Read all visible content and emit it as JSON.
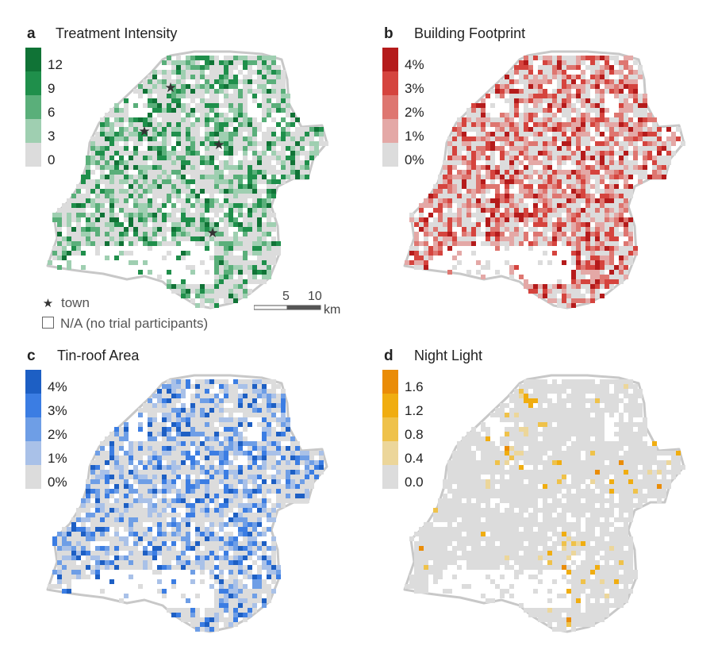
{
  "panels": [
    {
      "letter": "a",
      "title": "Treatment Intensity",
      "palette": [
        "#dcdcdc",
        "#9fcfb1",
        "#5aaf7a",
        "#1f8f4b",
        "#107336"
      ],
      "ticks": [
        "0",
        "3",
        "6",
        "9",
        "12"
      ],
      "density": 0.52,
      "seed": 11
    },
    {
      "letter": "b",
      "title": "Building Footprint",
      "palette": [
        "#dcdcdc",
        "#e4a8a6",
        "#de7670",
        "#d5443e",
        "#b51b1b"
      ],
      "ticks": [
        "0%",
        "1%",
        "2%",
        "3%",
        "4%"
      ],
      "density": 0.62,
      "seed": 23
    },
    {
      "letter": "c",
      "title": "Tin-roof Area",
      "palette": [
        "#dcdcdc",
        "#a9c1e8",
        "#6e9ee6",
        "#3b7de3",
        "#1d5fc4"
      ],
      "ticks": [
        "0%",
        "1%",
        "2%",
        "3%",
        "4%"
      ],
      "density": 0.5,
      "seed": 37
    },
    {
      "letter": "d",
      "title": "Night Light",
      "palette": [
        "#dcdcdc",
        "#ecd69a",
        "#efc24a",
        "#f0ad10",
        "#ea8c07"
      ],
      "ticks": [
        "0.0",
        "0.4",
        "0.8",
        "1.2",
        "1.6"
      ],
      "density": 0.12,
      "seed": 53
    }
  ],
  "key": {
    "town_label": "town",
    "na_label": "N/A (no trial participants)"
  },
  "scale": {
    "labels": [
      "5",
      "10"
    ],
    "unit": "km"
  },
  "towns": [
    {
      "name": "town-1"
    },
    {
      "name": "town-2"
    },
    {
      "name": "town-3"
    },
    {
      "name": "town-4"
    }
  ],
  "colors": {
    "outline": "#c8c8c8",
    "na_fill": "#dcdcdc"
  }
}
